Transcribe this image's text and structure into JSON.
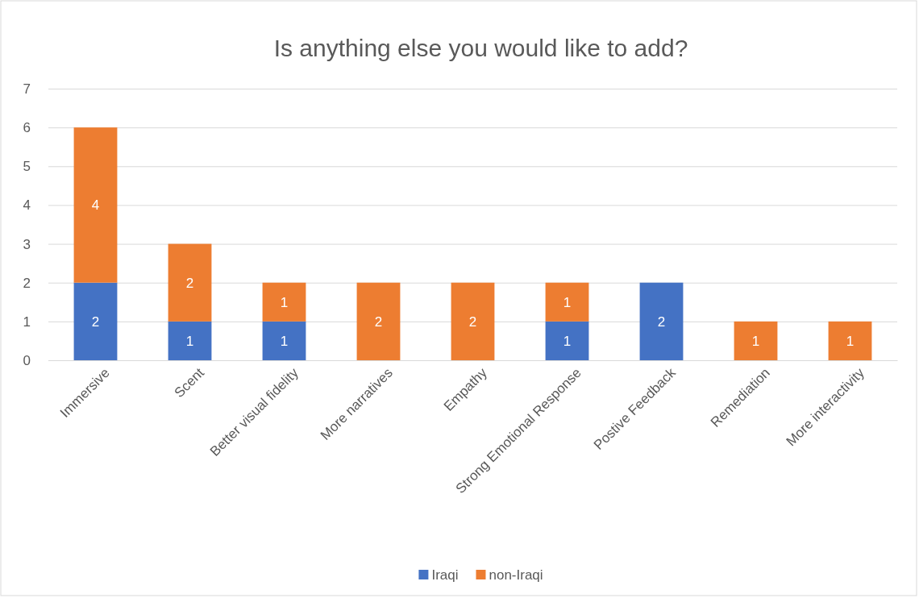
{
  "chart_data": {
    "type": "bar",
    "title": "Is anything else you would like to add?",
    "categories": [
      "Immersive",
      "Scent",
      "Better visual fidelity",
      "More narratives",
      "Empathy",
      "Strong Emotional Response",
      "Postive Feedback",
      "Remediation",
      "More interactivity"
    ],
    "series": [
      {
        "name": "Iraqi",
        "color": "#4472c4",
        "values": [
          2,
          1,
          1,
          null,
          null,
          1,
          2,
          null,
          null
        ]
      },
      {
        "name": "non-Iraqi",
        "color": "#ed7d31",
        "values": [
          4,
          2,
          1,
          2,
          2,
          1,
          null,
          1,
          1
        ]
      }
    ],
    "stacked": true,
    "ylim": [
      0,
      7
    ],
    "yticks": [
      0,
      1,
      2,
      3,
      4,
      5,
      6,
      7
    ],
    "grid": "y",
    "legend": "bottom",
    "data_labels": true
  }
}
